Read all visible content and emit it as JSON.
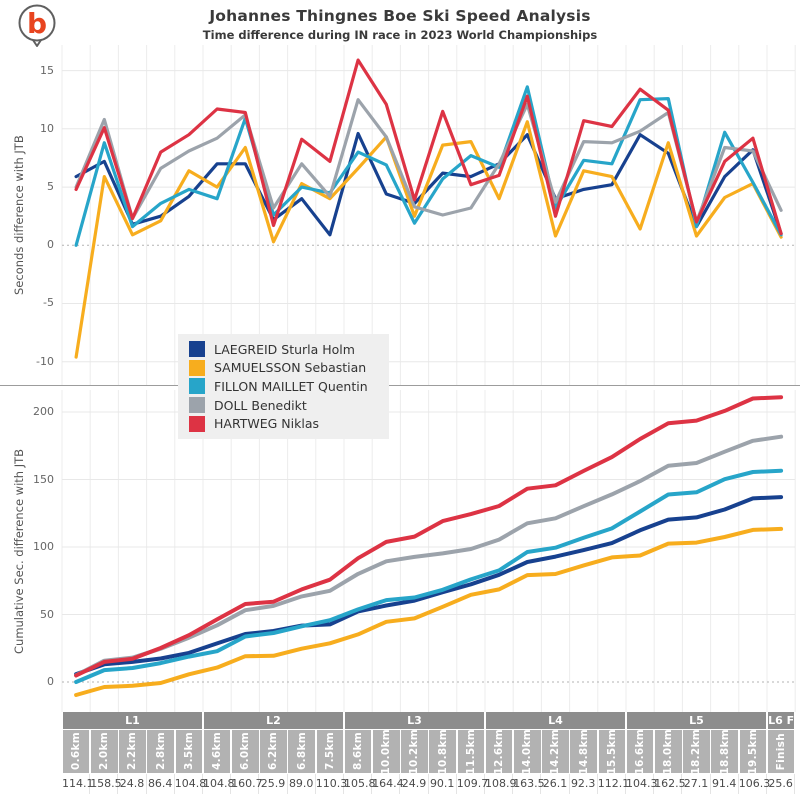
{
  "header": {
    "title": "Johannes Thingnes Boe Ski Speed Analysis",
    "subtitle": "Time difference during IN race in 2023 World Championships",
    "logo_letter": "b"
  },
  "colors": {
    "laegreid": "#17418f",
    "samuelsson": "#f7ad1e",
    "fillon_maillet": "#27a5c9",
    "doll": "#9ca3ab",
    "hartweg": "#dd3344",
    "lap_band": "#8d8d8d",
    "km_band": "#b2b2b2",
    "legend_bg": "#efefef"
  },
  "legend": {
    "items": [
      {
        "label": "LAEGREID Sturla Holm",
        "color": "#17418f"
      },
      {
        "label": "SAMUELSSON Sebastian",
        "color": "#f7ad1e"
      },
      {
        "label": "FILLON MAILLET Quentin",
        "color": "#27a5c9"
      },
      {
        "label": "DOLL Benedikt",
        "color": "#9ca3ab"
      },
      {
        "label": "HARTWEG Niklas",
        "color": "#dd3344"
      }
    ]
  },
  "chart_data": [
    {
      "type": "line",
      "ylabel": "Seconds difference with JTB",
      "yticks": [
        15,
        10,
        5,
        0,
        -5,
        -10
      ],
      "ylim": [
        -12.0,
        17.2
      ],
      "grid": true,
      "zero_line": "dashed",
      "categories": [
        "0.6km",
        "2.0km",
        "2.2km",
        "2.8km",
        "3.5km",
        "4.6km",
        "6.0km",
        "6.2km",
        "6.8km",
        "7.5km",
        "8.6km",
        "10.0km",
        "10.2km",
        "10.8km",
        "11.5km",
        "12.6km",
        "14.0km",
        "14.2km",
        "14.8km",
        "15.5km",
        "16.6km",
        "18.0km",
        "18.2km",
        "18.8km",
        "19.5km",
        "Finish"
      ],
      "series": [
        {
          "name": "LAEGREID Sturla Holm",
          "color": "#17418f",
          "values": [
            5.9,
            7.2,
            1.8,
            2.5,
            4.2,
            7.0,
            7.0,
            2.2,
            4.0,
            0.9,
            9.6,
            4.4,
            3.6,
            6.2,
            5.9,
            7.0,
            9.5,
            4.0,
            4.8,
            5.2,
            9.5,
            7.9,
            1.6,
            5.9,
            8.2,
            1.0
          ]
        },
        {
          "name": "SAMUELSSON Sebastian",
          "color": "#f7ad1e",
          "values": [
            -9.6,
            5.9,
            0.9,
            2.1,
            6.4,
            5.0,
            8.4,
            0.3,
            5.3,
            4.0,
            6.6,
            9.3,
            2.5,
            8.6,
            8.9,
            4.0,
            10.6,
            0.8,
            6.4,
            5.9,
            1.4,
            8.8,
            0.8,
            4.1,
            5.3,
            0.7
          ]
        },
        {
          "name": "FILLON MAILLET Quentin",
          "color": "#27a5c9",
          "values": [
            0.0,
            8.8,
            1.6,
            3.6,
            4.8,
            4.0,
            10.9,
            2.6,
            5.0,
            4.5,
            8.0,
            6.9,
            1.9,
            5.7,
            7.7,
            6.7,
            13.6,
            3.2,
            7.3,
            7.0,
            12.5,
            12.6,
            1.6,
            9.7,
            5.4,
            0.9
          ]
        },
        {
          "name": "DOLL Benedikt",
          "color": "#9ca3ab",
          "values": [
            5.0,
            10.8,
            2.3,
            6.6,
            8.1,
            9.2,
            11.2,
            3.2,
            7.0,
            4.2,
            12.5,
            9.3,
            3.3,
            2.6,
            3.2,
            7.0,
            12.1,
            3.7,
            8.9,
            8.8,
            9.8,
            11.4,
            2.0,
            8.4,
            8.1,
            3.0
          ]
        },
        {
          "name": "HARTWEG Niklas",
          "color": "#dd3344",
          "values": [
            4.8,
            10.1,
            2.3,
            8.0,
            9.5,
            11.7,
            11.4,
            1.7,
            9.1,
            7.2,
            15.9,
            12.1,
            3.9,
            11.5,
            5.2,
            6.0,
            12.8,
            2.5,
            10.7,
            10.2,
            13.4,
            11.6,
            2.0,
            7.2,
            9.2,
            1.0
          ]
        }
      ]
    },
    {
      "type": "line",
      "ylabel": "Cumulative Sec. difference with JTB",
      "yticks": [
        200,
        150,
        100,
        50,
        0
      ],
      "ylim": [
        -22.2,
        216.3
      ],
      "grid": true,
      "zero_line": "dashed",
      "categories": [
        "0.6km",
        "2.0km",
        "2.2km",
        "2.8km",
        "3.5km",
        "4.6km",
        "6.0km",
        "6.2km",
        "6.8km",
        "7.5km",
        "8.6km",
        "10.0km",
        "10.2km",
        "10.8km",
        "11.5km",
        "12.6km",
        "14.0km",
        "14.2km",
        "14.8km",
        "15.5km",
        "16.6km",
        "18.0km",
        "18.2km",
        "18.8km",
        "19.5km",
        "Finish"
      ],
      "series": [
        {
          "name": "LAEGREID Sturla Holm",
          "color": "#17418f",
          "values": [
            5.9,
            13.1,
            14.9,
            17.4,
            21.6,
            28.6,
            35.6,
            37.8,
            41.8,
            42.7,
            52.3,
            56.7,
            60.3,
            66.5,
            72.4,
            79.4,
            88.9,
            92.9,
            97.7,
            102.9,
            112.4,
            120.3,
            121.9,
            127.8,
            136.0,
            137.0
          ]
        },
        {
          "name": "SAMUELSSON Sebastian",
          "color": "#f7ad1e",
          "values": [
            -9.6,
            -3.7,
            -2.8,
            -0.7,
            5.7,
            10.7,
            19.1,
            19.4,
            24.7,
            28.7,
            35.3,
            44.6,
            47.1,
            55.7,
            64.6,
            68.6,
            79.2,
            80.0,
            86.4,
            92.3,
            93.7,
            102.5,
            103.3,
            107.4,
            112.7,
            113.4
          ]
        },
        {
          "name": "FILLON MAILLET Quentin",
          "color": "#27a5c9",
          "values": [
            0.0,
            8.8,
            10.4,
            14.0,
            18.8,
            22.8,
            33.7,
            36.3,
            41.3,
            45.8,
            53.8,
            60.7,
            62.6,
            68.3,
            76.0,
            82.7,
            96.3,
            99.5,
            106.8,
            113.8,
            126.3,
            138.9,
            140.5,
            150.2,
            155.6,
            156.5
          ]
        },
        {
          "name": "DOLL Benedikt",
          "color": "#9ca3ab",
          "values": [
            5.0,
            15.8,
            18.1,
            24.7,
            32.8,
            42.0,
            53.2,
            56.4,
            63.4,
            67.6,
            80.1,
            89.4,
            92.7,
            95.3,
            98.5,
            105.5,
            117.6,
            121.3,
            130.2,
            139.0,
            148.8,
            160.2,
            162.2,
            170.6,
            178.7,
            181.7
          ]
        },
        {
          "name": "HARTWEG Niklas",
          "color": "#dd3344",
          "values": [
            4.8,
            14.9,
            17.2,
            25.2,
            34.7,
            46.4,
            57.8,
            59.5,
            68.6,
            75.8,
            91.7,
            103.8,
            107.7,
            119.2,
            124.4,
            130.4,
            143.2,
            145.7,
            156.4,
            166.6,
            180.0,
            191.6,
            193.6,
            200.8,
            210.0,
            211.0
          ]
        }
      ]
    }
  ],
  "xaxis": {
    "laps": [
      {
        "label": "L1",
        "span": 5
      },
      {
        "label": "L2",
        "span": 5
      },
      {
        "label": "L3",
        "span": 5
      },
      {
        "label": "L4",
        "span": 5
      },
      {
        "label": "L5",
        "span": 5
      },
      {
        "label": "L6 F",
        "span": 1
      }
    ],
    "checkpoints": [
      "0.6km",
      "2.0km",
      "2.2km",
      "2.8km",
      "3.5km",
      "4.6km",
      "6.0km",
      "6.2km",
      "6.8km",
      "7.5km",
      "8.6km",
      "10.0km",
      "10.2km",
      "10.8km",
      "11.5km",
      "12.6km",
      "14.0km",
      "14.2km",
      "14.8km",
      "15.5km",
      "16.6km",
      "18.0km",
      "18.2km",
      "18.8km",
      "19.5km",
      "Finish"
    ],
    "segment_times": [
      "114.1",
      "158.5",
      "24.8",
      "86.4",
      "104.8",
      "104.8",
      "160.7",
      "25.9",
      "89.0",
      "110.3",
      "105.8",
      "164.4",
      "24.9",
      "90.1",
      "109.7",
      "108.9",
      "163.5",
      "26.1",
      "92.3",
      "112.1",
      "104.3",
      "162.5",
      "27.1",
      "91.4",
      "106.3",
      "25.6"
    ]
  }
}
